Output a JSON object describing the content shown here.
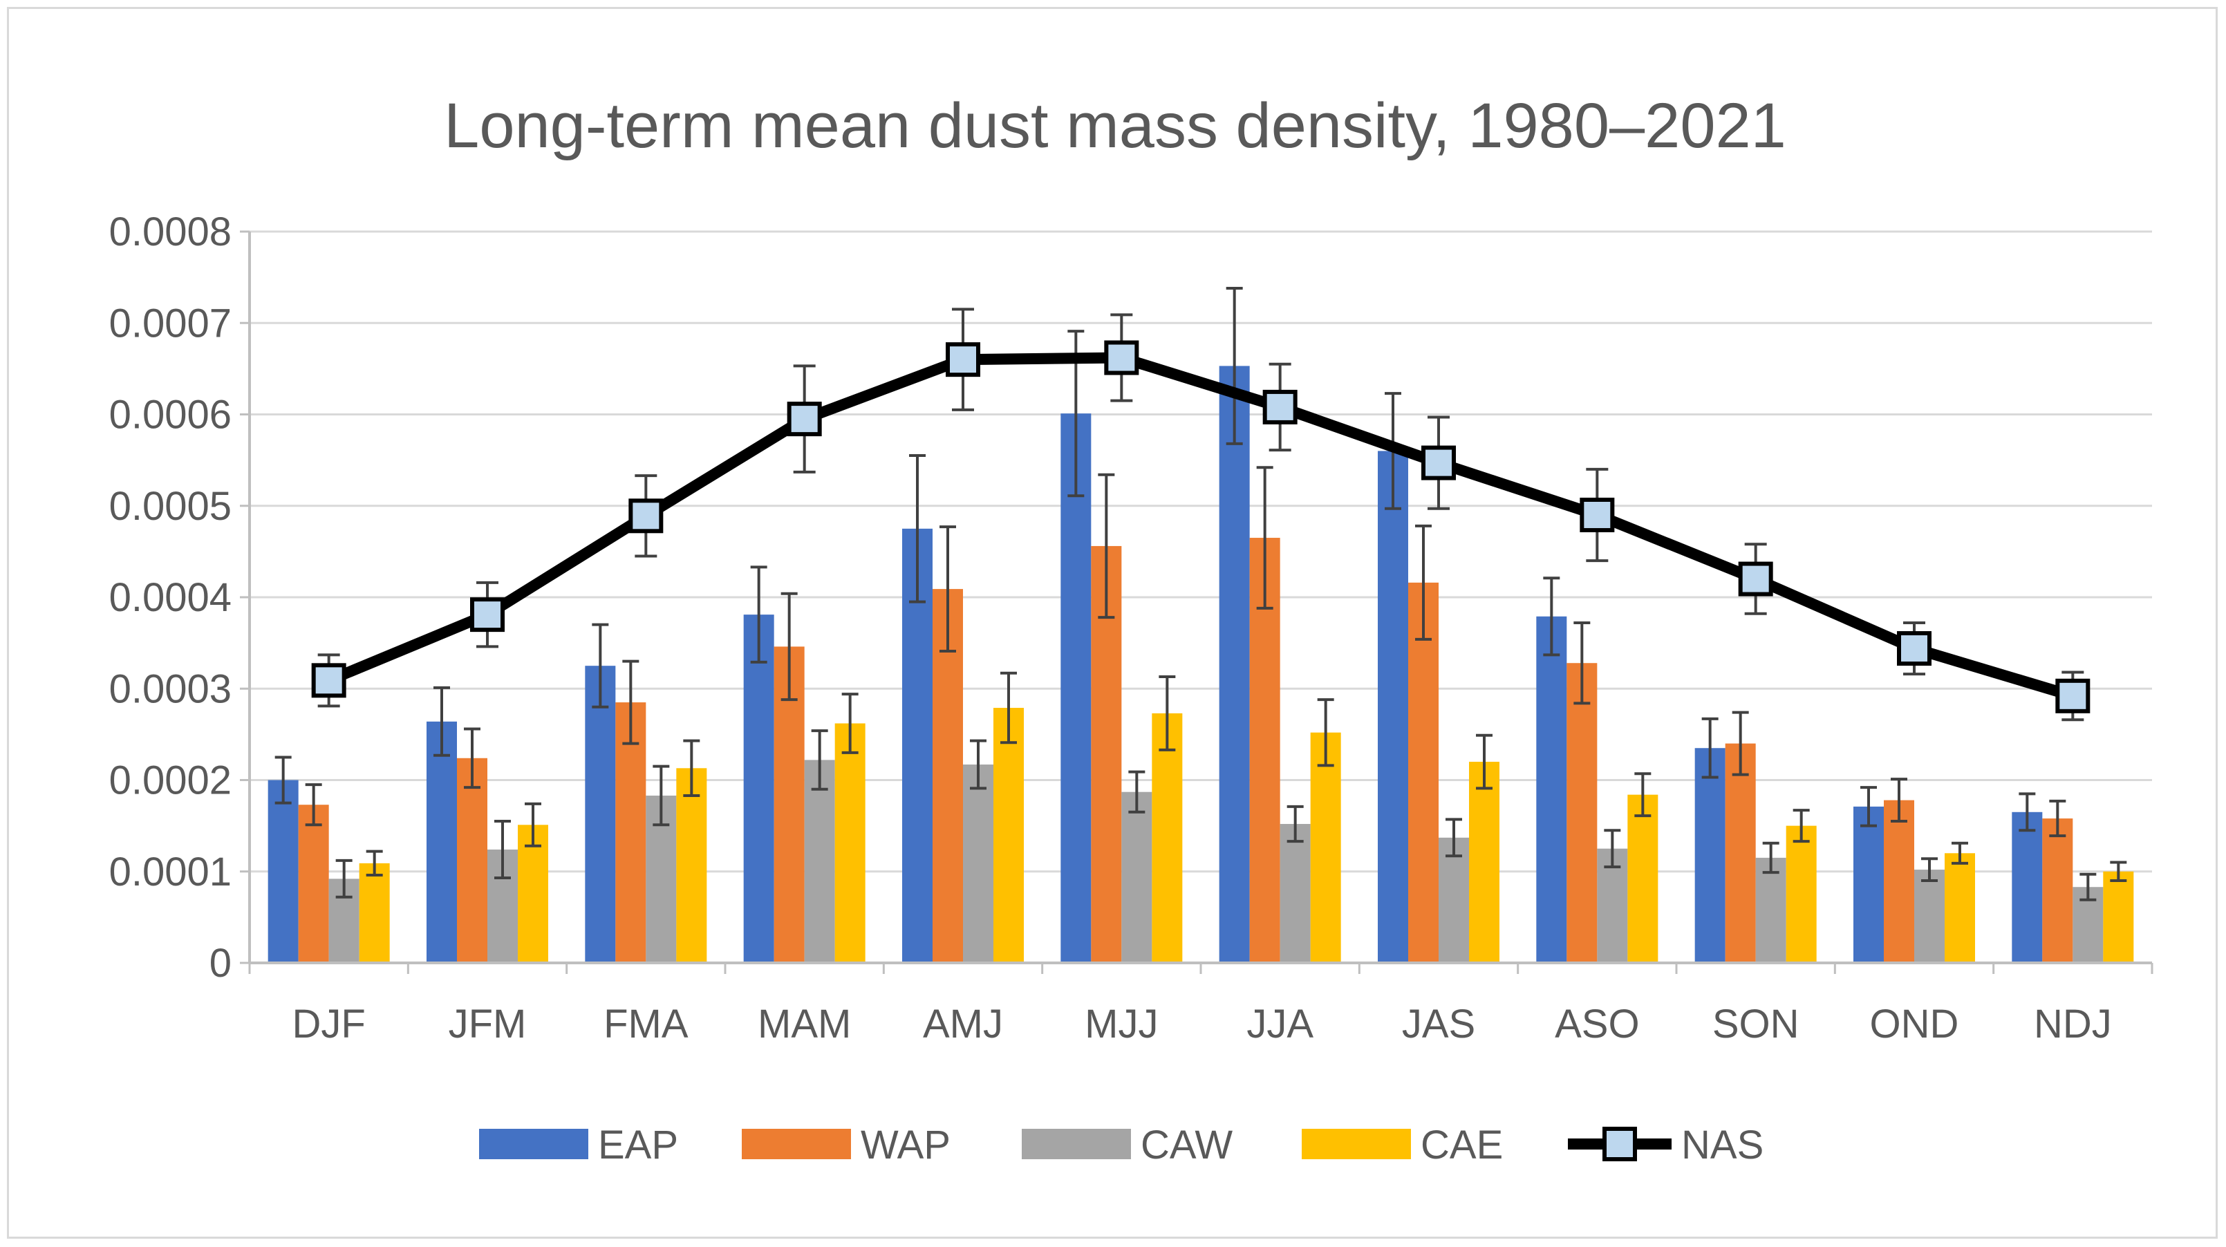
{
  "chart_data": {
    "type": "bar",
    "title": "Long-term mean dust mass density, 1980–2021",
    "xlabel": "",
    "ylabel": "",
    "ylim": [
      0,
      0.0008
    ],
    "y_ticks": [
      "0",
      "0.0001",
      "0.0002",
      "0.0003",
      "0.0004",
      "0.0005",
      "0.0006",
      "0.0007",
      "0.0008"
    ],
    "grid": true,
    "legend_position": "bottom",
    "categories": [
      "DJF",
      "JFM",
      "FMA",
      "MAM",
      "AMJ",
      "MJJ",
      "JJA",
      "JAS",
      "ASO",
      "SON",
      "OND",
      "NDJ"
    ],
    "series": [
      {
        "name": "EAP",
        "kind": "bar",
        "color": "#4472c4",
        "values": [
          0.0002,
          0.000264,
          0.000325,
          0.000381,
          0.000475,
          0.000601,
          0.000653,
          0.00056,
          0.000379,
          0.000235,
          0.000171,
          0.000165
        ],
        "errors": [
          2.5e-05,
          3.7e-05,
          4.5e-05,
          5.2e-05,
          8e-05,
          9e-05,
          8.5e-05,
          6.3e-05,
          4.2e-05,
          3.2e-05,
          2.1e-05,
          2e-05
        ]
      },
      {
        "name": "WAP",
        "kind": "bar",
        "color": "#ed7d31",
        "values": [
          0.000173,
          0.000224,
          0.000285,
          0.000346,
          0.000409,
          0.000456,
          0.000465,
          0.000416,
          0.000328,
          0.00024,
          0.000178,
          0.000158
        ],
        "errors": [
          2.2e-05,
          3.2e-05,
          4.5e-05,
          5.8e-05,
          6.8e-05,
          7.8e-05,
          7.7e-05,
          6.2e-05,
          4.4e-05,
          3.4e-05,
          2.3e-05,
          1.9e-05
        ]
      },
      {
        "name": "CAW",
        "kind": "bar",
        "color": "#a5a5a5",
        "values": [
          9.2e-05,
          0.000124,
          0.000183,
          0.000222,
          0.000217,
          0.000187,
          0.000152,
          0.000137,
          0.000125,
          0.000115,
          0.000102,
          8.3e-05
        ],
        "errors": [
          2e-05,
          3.1e-05,
          3.2e-05,
          3.2e-05,
          2.6e-05,
          2.2e-05,
          1.9e-05,
          2e-05,
          2e-05,
          1.6e-05,
          1.2e-05,
          1.4e-05
        ]
      },
      {
        "name": "CAE",
        "kind": "bar",
        "color": "#ffc000",
        "values": [
          0.000109,
          0.000151,
          0.000213,
          0.000262,
          0.000279,
          0.000273,
          0.000252,
          0.00022,
          0.000184,
          0.00015,
          0.00012,
          0.0001
        ],
        "errors": [
          1.3e-05,
          2.3e-05,
          3e-05,
          3.2e-05,
          3.8e-05,
          4e-05,
          3.6e-05,
          2.9e-05,
          2.3e-05,
          1.7e-05,
          1.1e-05,
          1e-05
        ]
      },
      {
        "name": "NAS",
        "kind": "line",
        "color": "#000000",
        "marker_fill": "#bdd7ee",
        "values": [
          0.000309,
          0.000381,
          0.000489,
          0.000595,
          0.00066,
          0.000662,
          0.000608,
          0.000547,
          0.00049,
          0.00042,
          0.000344,
          0.000292
        ],
        "errors": [
          2.8e-05,
          3.5e-05,
          4.4e-05,
          5.8e-05,
          5.5e-05,
          4.7e-05,
          4.7e-05,
          5e-05,
          5e-05,
          3.8e-05,
          2.8e-05,
          2.6e-05
        ]
      }
    ]
  }
}
